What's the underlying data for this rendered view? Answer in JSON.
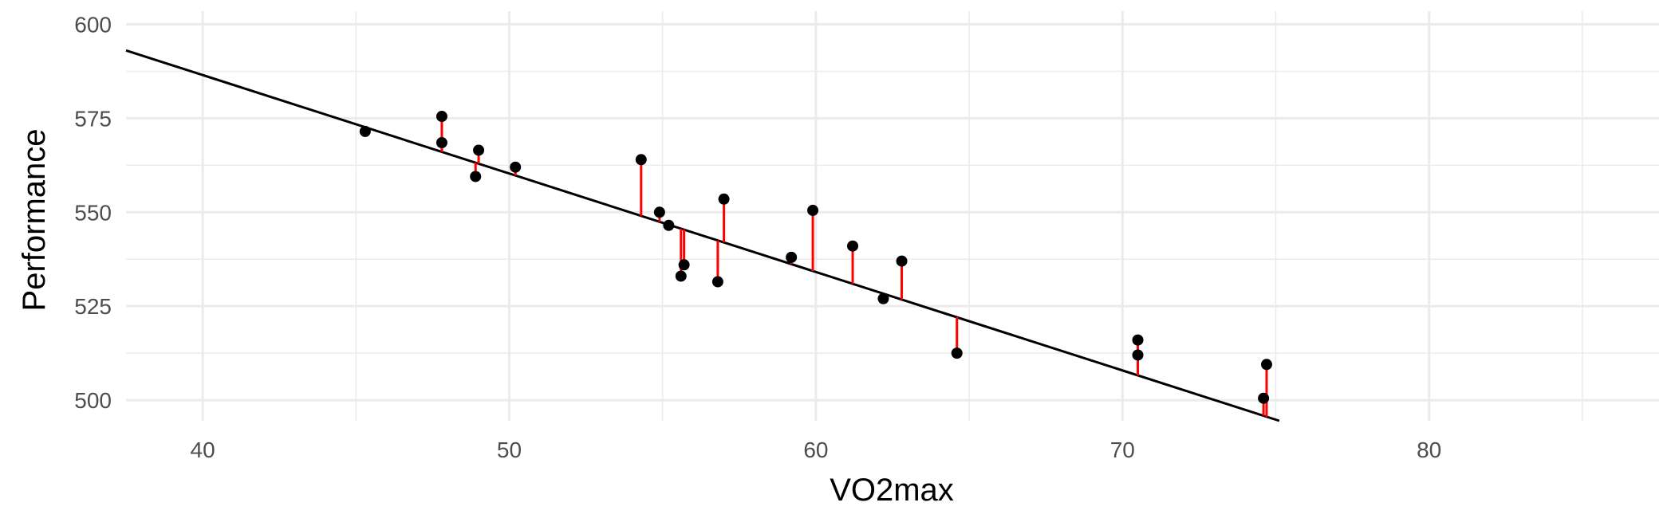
{
  "chart_data": {
    "type": "scatter",
    "title": "",
    "xlabel": "VO2max",
    "ylabel": "Performance",
    "xlim": [
      37.5,
      87.5
    ],
    "ylim": [
      494.5,
      603.5
    ],
    "x_ticks": [
      40,
      50,
      60,
      70,
      80
    ],
    "y_ticks": [
      500,
      525,
      550,
      575,
      600
    ],
    "grid": true,
    "legend": "none",
    "regression_line": {
      "intercept": 691.3,
      "slope": -2.62
    },
    "points": [
      {
        "x": 45.3,
        "y": 571.5
      },
      {
        "x": 47.8,
        "y": 575.5
      },
      {
        "x": 47.8,
        "y": 568.5
      },
      {
        "x": 49.0,
        "y": 566.5
      },
      {
        "x": 48.9,
        "y": 559.5
      },
      {
        "x": 50.2,
        "y": 562.0
      },
      {
        "x": 54.3,
        "y": 564.0
      },
      {
        "x": 54.9,
        "y": 550.0
      },
      {
        "x": 55.2,
        "y": 546.5
      },
      {
        "x": 55.7,
        "y": 536.0
      },
      {
        "x": 55.6,
        "y": 533.0
      },
      {
        "x": 57.0,
        "y": 553.5
      },
      {
        "x": 56.8,
        "y": 531.5
      },
      {
        "x": 59.2,
        "y": 538.0
      },
      {
        "x": 59.9,
        "y": 550.5
      },
      {
        "x": 61.2,
        "y": 541.0
      },
      {
        "x": 62.2,
        "y": 527.0
      },
      {
        "x": 62.8,
        "y": 537.0
      },
      {
        "x": 64.6,
        "y": 512.5
      },
      {
        "x": 70.5,
        "y": 516.0
      },
      {
        "x": 70.5,
        "y": 512.0
      },
      {
        "x": 74.6,
        "y": 500.5
      },
      {
        "x": 74.7,
        "y": 509.5
      }
    ],
    "colors": {
      "points": "#000000",
      "line": "#000000",
      "residuals": "#ff0000",
      "grid": "#ebebeb",
      "background": "#ffffff"
    }
  }
}
